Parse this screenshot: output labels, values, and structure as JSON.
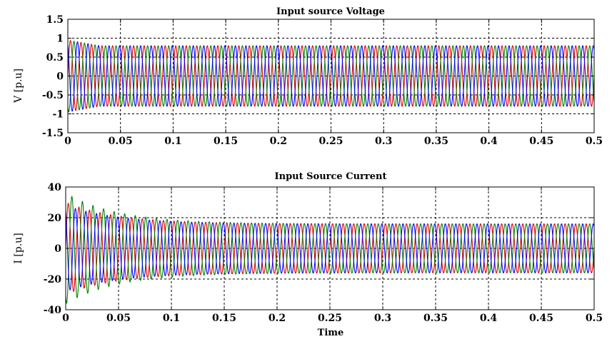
{
  "chart_data": [
    {
      "type": "line",
      "title": "Input source Voltage",
      "xlabel": "",
      "ylabel": "V [p.u]",
      "xlim": [
        0,
        0.5
      ],
      "ylim": [
        -1.5,
        1.5
      ],
      "xticks": [
        0,
        0.05,
        0.1,
        0.15,
        0.2,
        0.25,
        0.3,
        0.35,
        0.4,
        0.45,
        0.5
      ],
      "xtick_labels": [
        "0",
        "0.05",
        "0.1",
        "0.15",
        "0.2",
        "0.25",
        "0.3",
        "0.35",
        "0.4",
        "0.45",
        "0.5"
      ],
      "yticks": [
        -1.5,
        -1,
        -0.5,
        0,
        0.5,
        1,
        1.5
      ],
      "ytick_labels": [
        "-1.5",
        "-1",
        "-0.5",
        "0",
        "0.5",
        "1",
        "1.5"
      ],
      "grid": true,
      "frequency_hz": 100,
      "steady_amplitude": 0.8,
      "initial_amplitude": 0.95,
      "settling_time": 0.03,
      "reference_lines": [
        1,
        -1
      ],
      "series": [
        {
          "color": "#e00000",
          "phase_deg": 0
        },
        {
          "color": "#008000",
          "phase_deg": -120
        },
        {
          "color": "#0000ff",
          "phase_deg": 120
        }
      ]
    },
    {
      "type": "line",
      "title": "Input Source Current",
      "xlabel": "Time",
      "ylabel": "I [p.u]",
      "xlim": [
        0,
        0.5
      ],
      "ylim": [
        -40,
        40
      ],
      "xticks": [
        0,
        0.05,
        0.1,
        0.15,
        0.2,
        0.25,
        0.3,
        0.35,
        0.4,
        0.45,
        0.5
      ],
      "xtick_labels": [
        "0",
        "0.05",
        "0.1",
        "0.15",
        "0.2",
        "0.25",
        "0.3",
        "0.35",
        "0.4",
        "0.45",
        "0.5"
      ],
      "yticks": [
        -40,
        -20,
        0,
        20,
        40
      ],
      "ytick_labels": [
        "-40",
        "-20",
        "0",
        "20",
        "40"
      ],
      "grid": true,
      "frequency_hz": 100,
      "steady_amplitude": 16,
      "initial_amplitudes": [
        30,
        36,
        28
      ],
      "decay_time_constant": 0.05,
      "reference_lines": [
        20,
        -20
      ],
      "series": [
        {
          "color": "#e00000",
          "phase_deg": 0
        },
        {
          "color": "#008000",
          "phase_deg": -120
        },
        {
          "color": "#0000ff",
          "phase_deg": 120
        }
      ]
    }
  ]
}
